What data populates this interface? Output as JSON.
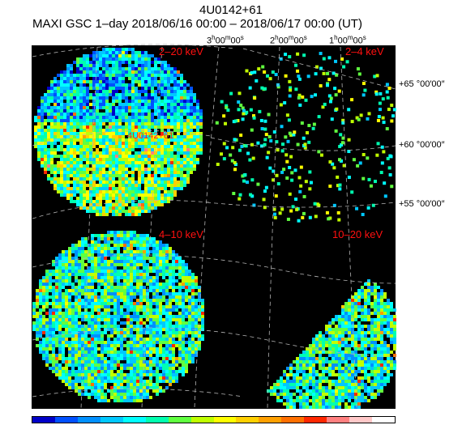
{
  "title": "4U0142+61",
  "subtitle": "MAXI GSC 1–day 2018/06/16 00:00 – 2018/06/17 00:00 (UT)",
  "ra_labels": [
    "3h00m00s",
    "2h00m00s",
    "1h00m00s"
  ],
  "dec_labels": [
    "+65 °00′00″",
    "+60 °00′00″",
    "+55 °00′00″"
  ],
  "source_label": "4U0142+61",
  "chart_data": {
    "type": "heatmap",
    "panels": [
      {
        "band": "2–20 keV",
        "position": "top-left"
      },
      {
        "band": "2–4 keV",
        "position": "top-right"
      },
      {
        "band": "4–10 keV",
        "position": "bottom-left"
      },
      {
        "band": "10–20 keV",
        "position": "bottom-right"
      }
    ],
    "ra_ticks_hours": [
      3,
      2,
      1
    ],
    "dec_ticks_deg": [
      65,
      60,
      55
    ],
    "colorbar": [
      "#0000c8",
      "#0050ff",
      "#0090ff",
      "#00c8ff",
      "#00ffff",
      "#00ffb0",
      "#60ff40",
      "#c0ff00",
      "#ffff00",
      "#ffd000",
      "#ffa000",
      "#ff7000",
      "#ff2800",
      "#ff8080",
      "#ffc8c8",
      "#ffffff"
    ]
  }
}
